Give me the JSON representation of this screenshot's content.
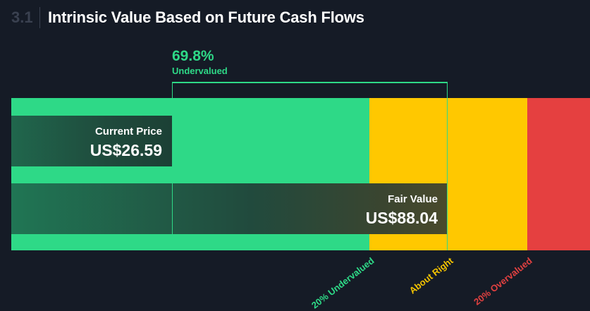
{
  "header": {
    "section_number": "3.1",
    "title": "Intrinsic Value Based on Future Cash Flows"
  },
  "valuation": {
    "percent": "69.8%",
    "status": "Undervalued"
  },
  "colors": {
    "undervalued": "#2ed987",
    "about_right": "#ffc800",
    "overvalued": "#e54040",
    "background": "#151b26"
  },
  "chart_data": {
    "type": "bar",
    "categories": [
      "Current Price",
      "Fair Value"
    ],
    "values": [
      26.59,
      88.04
    ],
    "value_labels": [
      "US$26.59",
      "US$88.04"
    ],
    "unit": "US$",
    "discount_percent": 69.8,
    "zones": [
      {
        "label": "20% Undervalued",
        "color": "#2ed987"
      },
      {
        "label": "About Right",
        "color": "#ffc800"
      },
      {
        "label": "20% Overvalued",
        "color": "#e54040"
      }
    ]
  }
}
